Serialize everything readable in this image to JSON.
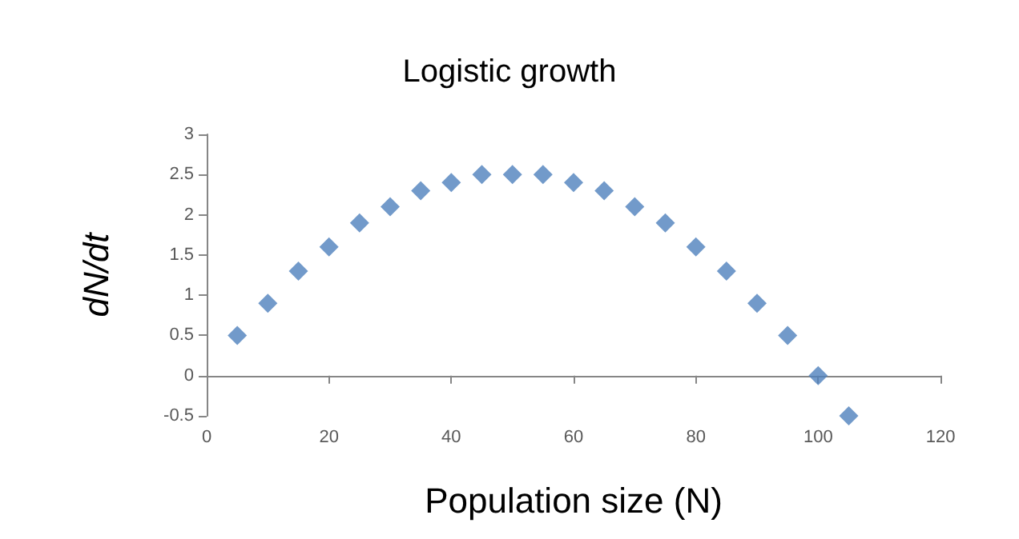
{
  "chart_data": {
    "type": "scatter",
    "title": "Logistic growth",
    "xlabel": "Population size (N)",
    "ylabel": "dN/dt",
    "x": [
      5,
      10,
      15,
      20,
      25,
      30,
      35,
      40,
      45,
      50,
      55,
      60,
      65,
      70,
      75,
      80,
      85,
      90,
      95,
      100,
      105
    ],
    "series": [
      {
        "color": "#4f81bd",
        "values": [
          0.5,
          0.9,
          1.3,
          1.6,
          1.9,
          2.1,
          2.3,
          2.4,
          2.5,
          2.5,
          2.5,
          2.4,
          2.3,
          2.1,
          1.9,
          1.6,
          1.3,
          0.9,
          0.5,
          0,
          -0.5
        ]
      }
    ],
    "xlim": [
      0,
      120
    ],
    "xticks": [
      0,
      20,
      40,
      60,
      80,
      100,
      120
    ],
    "ylim": [
      -0.5,
      3
    ],
    "yticks": [
      -0.5,
      0,
      0.5,
      1,
      1.5,
      2,
      2.5,
      3
    ],
    "marker": "diamond"
  }
}
